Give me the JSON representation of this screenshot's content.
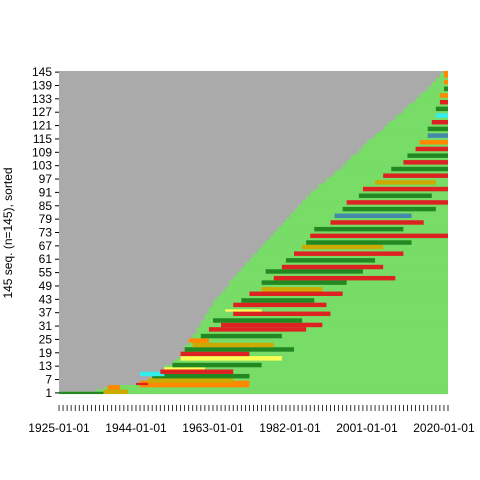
{
  "chart_data": {
    "type": "heatmap",
    "title": "",
    "xlabel": "",
    "ylabel": "145 seq. (n=145), sorted",
    "x_tick_labels": [
      "1925-01-01",
      "1944-01-01",
      "1963-01-01",
      "1982-01-01",
      "2001-01-01",
      "2020-01-01"
    ],
    "x_tick_values": [
      1925,
      1944,
      1963,
      1982,
      2001,
      2020
    ],
    "xlim": [
      1925,
      2021
    ],
    "y_tick_labels": [
      "1",
      "7",
      "13",
      "19",
      "25",
      "31",
      "37",
      "43",
      "49",
      "55",
      "61",
      "67",
      "73",
      "79",
      "85",
      "91",
      "97",
      "103",
      "109",
      "115",
      "121",
      "127",
      "133",
      "139",
      "145"
    ],
    "ylim": [
      0.5,
      145.5
    ],
    "n_sequences": 145,
    "state_colors": {
      "missing": "#aaaaaa",
      "light_green": "#77dd66",
      "dark_green": "#228822",
      "red": "#dd2222",
      "orange": "#ff8800",
      "gold": "#ccaa00",
      "yellow": "#ffff55",
      "cyan": "#33eeee",
      "steel_blue": "#4488aa",
      "purple": "#8866bb"
    },
    "sequence_start_year": [
      1925,
      1934,
      1936,
      1937,
      1945,
      1946,
      1947,
      1948,
      1948,
      1950,
      1950,
      1951,
      1951,
      1953,
      1953,
      1954,
      1955,
      1955,
      1955,
      1956,
      1956,
      1956,
      1957,
      1957,
      1957,
      1958,
      1958,
      1959,
      1959,
      1959,
      1960,
      1960,
      1960,
      1961,
      1961,
      1961,
      1962,
      1962,
      1962,
      1963,
      1963,
      1963,
      1964,
      1964,
      1965,
      1965,
      1966,
      1966,
      1967,
      1967,
      1967,
      1968,
      1968,
      1969,
      1969,
      1970,
      1970,
      1971,
      1971,
      1972,
      1972,
      1973,
      1973,
      1974,
      1974,
      1975,
      1975,
      1976,
      1976,
      1977,
      1977,
      1978,
      1978,
      1979,
      1979,
      1980,
      1980,
      1981,
      1981,
      1982,
      1982,
      1983,
      1983,
      1984,
      1984,
      1985,
      1985,
      1986,
      1986,
      1987,
      1987,
      1988,
      1989,
      1989,
      1990,
      1991,
      1991,
      1992,
      1993,
      1993,
      1994,
      1995,
      1995,
      1996,
      1996,
      1997,
      1997,
      1998,
      1999,
      1999,
      2000,
      2000,
      2001,
      2001,
      2002,
      2003,
      2003,
      2004,
      2005,
      2005,
      2006,
      2006,
      2007,
      2008,
      2008,
      2009,
      2010,
      2010,
      2011,
      2011,
      2012,
      2013,
      2013,
      2014,
      2014,
      2015,
      2016,
      2016,
      2017,
      2017,
      2018,
      2018,
      2019,
      2019,
      2020
    ],
    "state_runs": [
      {
        "rows": [
          1,
          1
        ],
        "from": 1925,
        "to": 1936,
        "state": "dark_green"
      },
      {
        "rows": [
          1,
          2
        ],
        "from": 1936,
        "to": 1942,
        "state": "gold"
      },
      {
        "rows": [
          3,
          4
        ],
        "from": 1937,
        "to": 1940,
        "state": "orange"
      },
      {
        "rows": [
          4,
          6
        ],
        "from": 1945,
        "to": 1972,
        "state": "orange"
      },
      {
        "rows": [
          5,
          5
        ],
        "from": 1944,
        "to": 1947,
        "state": "red"
      },
      {
        "rows": [
          6,
          7
        ],
        "from": 1947,
        "to": 1968,
        "state": "gold"
      },
      {
        "rows": [
          8,
          9
        ],
        "from": 1948,
        "to": 1972,
        "state": "dark_green"
      },
      {
        "rows": [
          9,
          10
        ],
        "from": 1945,
        "to": 1951,
        "state": "cyan"
      },
      {
        "rows": [
          10,
          11
        ],
        "from": 1950,
        "to": 1968,
        "state": "red"
      },
      {
        "rows": [
          12,
          12
        ],
        "from": 1951,
        "to": 1961,
        "state": "yellow"
      },
      {
        "rows": [
          13,
          14
        ],
        "from": 1953,
        "to": 1975,
        "state": "dark_green"
      },
      {
        "rows": [
          16,
          17
        ],
        "from": 1955,
        "to": 1980,
        "state": "yellow"
      },
      {
        "rows": [
          18,
          19
        ],
        "from": 1955,
        "to": 1972,
        "state": "red"
      },
      {
        "rows": [
          20,
          21
        ],
        "from": 1956,
        "to": 1983,
        "state": "dark_green"
      },
      {
        "rows": [
          22,
          23
        ],
        "from": 1958,
        "to": 1978,
        "state": "gold"
      },
      {
        "rows": [
          24,
          25
        ],
        "from": 1957,
        "to": 1962,
        "state": "orange"
      },
      {
        "rows": [
          26,
          27
        ],
        "from": 1960,
        "to": 1980,
        "state": "dark_green"
      },
      {
        "rows": [
          29,
          30
        ],
        "from": 1962,
        "to": 1986,
        "state": "red"
      },
      {
        "rows": [
          31,
          32
        ],
        "from": 1965,
        "to": 1990,
        "state": "red"
      },
      {
        "rows": [
          33,
          34
        ],
        "from": 1963,
        "to": 1985,
        "state": "dark_green"
      },
      {
        "rows": [
          36,
          37
        ],
        "from": 1968,
        "to": 1992,
        "state": "red"
      },
      {
        "rows": [
          38,
          38
        ],
        "from": 1966,
        "to": 1975,
        "state": "yellow"
      },
      {
        "rows": [
          40,
          41
        ],
        "from": 1968,
        "to": 1991,
        "state": "red"
      },
      {
        "rows": [
          42,
          43
        ],
        "from": 1970,
        "to": 1988,
        "state": "dark_green"
      },
      {
        "rows": [
          45,
          46
        ],
        "from": 1972,
        "to": 1995,
        "state": "red"
      },
      {
        "rows": [
          47,
          48
        ],
        "from": 1975,
        "to": 1990,
        "state": "gold"
      },
      {
        "rows": [
          50,
          51
        ],
        "from": 1975,
        "to": 1996,
        "state": "dark_green"
      },
      {
        "rows": [
          52,
          53
        ],
        "from": 1978,
        "to": 2008,
        "state": "red"
      },
      {
        "rows": [
          55,
          56
        ],
        "from": 1976,
        "to": 2000,
        "state": "dark_green"
      },
      {
        "rows": [
          57,
          58
        ],
        "from": 1980,
        "to": 2005,
        "state": "red"
      },
      {
        "rows": [
          60,
          61
        ],
        "from": 1981,
        "to": 2003,
        "state": "dark_green"
      },
      {
        "rows": [
          63,
          64
        ],
        "from": 1983,
        "to": 2010,
        "state": "red"
      },
      {
        "rows": [
          66,
          67
        ],
        "from": 1985,
        "to": 2005,
        "state": "gold"
      },
      {
        "rows": [
          68,
          69
        ],
        "from": 1986,
        "to": 2012,
        "state": "dark_green"
      },
      {
        "rows": [
          71,
          72
        ],
        "from": 1987,
        "to": 2021,
        "state": "red"
      },
      {
        "rows": [
          74,
          75
        ],
        "from": 1988,
        "to": 2010,
        "state": "dark_green"
      },
      {
        "rows": [
          77,
          78
        ],
        "from": 1992,
        "to": 2015,
        "state": "red"
      },
      {
        "rows": [
          80,
          81
        ],
        "from": 1993,
        "to": 2012,
        "state": "steel_blue"
      },
      {
        "rows": [
          83,
          84
        ],
        "from": 1995,
        "to": 2018,
        "state": "dark_green"
      },
      {
        "rows": [
          86,
          87
        ],
        "from": 1996,
        "to": 2021,
        "state": "red"
      },
      {
        "rows": [
          89,
          90
        ],
        "from": 1999,
        "to": 2017,
        "state": "dark_green"
      },
      {
        "rows": [
          92,
          93
        ],
        "from": 2000,
        "to": 2021,
        "state": "red"
      },
      {
        "rows": [
          95,
          96
        ],
        "from": 2003,
        "to": 2018,
        "state": "gold"
      },
      {
        "rows": [
          98,
          99
        ],
        "from": 2005,
        "to": 2021,
        "state": "red"
      },
      {
        "rows": [
          101,
          102
        ],
        "from": 2007,
        "to": 2021,
        "state": "dark_green"
      },
      {
        "rows": [
          104,
          105
        ],
        "from": 2010,
        "to": 2021,
        "state": "red"
      },
      {
        "rows": [
          107,
          108
        ],
        "from": 2011,
        "to": 2021,
        "state": "dark_green"
      },
      {
        "rows": [
          110,
          111
        ],
        "from": 2013,
        "to": 2021,
        "state": "red"
      },
      {
        "rows": [
          113,
          114
        ],
        "from": 2014,
        "to": 2021,
        "state": "orange"
      },
      {
        "rows": [
          116,
          117
        ],
        "from": 2016,
        "to": 2021,
        "state": "steel_blue"
      },
      {
        "rows": [
          119,
          120
        ],
        "from": 2016,
        "to": 2021,
        "state": "dark_green"
      },
      {
        "rows": [
          122,
          123
        ],
        "from": 2017,
        "to": 2021,
        "state": "red"
      },
      {
        "rows": [
          125,
          126
        ],
        "from": 2018,
        "to": 2021,
        "state": "cyan"
      },
      {
        "rows": [
          128,
          129
        ],
        "from": 2018,
        "to": 2021,
        "state": "dark_green"
      },
      {
        "rows": [
          131,
          132
        ],
        "from": 2019,
        "to": 2021,
        "state": "red"
      },
      {
        "rows": [
          134,
          135
        ],
        "from": 2019,
        "to": 2021,
        "state": "orange"
      },
      {
        "rows": [
          137,
          138
        ],
        "from": 2020,
        "to": 2021,
        "state": "dark_green"
      },
      {
        "rows": [
          140,
          141
        ],
        "from": 2020,
        "to": 2021,
        "state": "orange"
      },
      {
        "rows": [
          143,
          145
        ],
        "from": 2020,
        "to": 2021,
        "state": "orange"
      }
    ],
    "grid": false,
    "legend": "none"
  }
}
